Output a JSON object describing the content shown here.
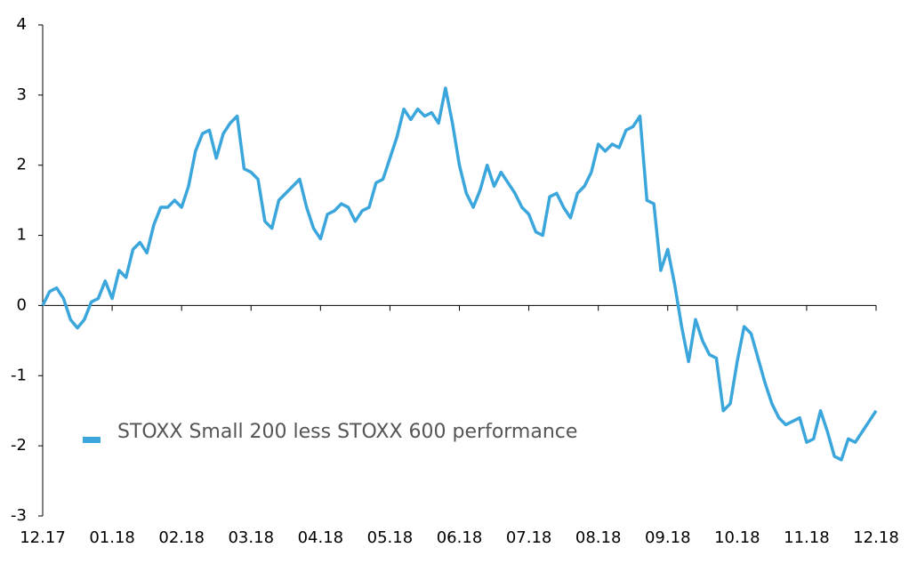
{
  "chart_data": {
    "type": "line",
    "categories": [
      "12.17",
      null,
      null,
      null,
      null,
      null,
      null,
      null,
      null,
      null,
      "01.18",
      null,
      null,
      null,
      null,
      null,
      null,
      null,
      null,
      null,
      "02.18",
      null,
      null,
      null,
      null,
      null,
      null,
      null,
      null,
      null,
      "03.18",
      null,
      null,
      null,
      null,
      null,
      null,
      null,
      null,
      null,
      "04.18",
      null,
      null,
      null,
      null,
      null,
      null,
      null,
      null,
      null,
      "05.18",
      null,
      null,
      null,
      null,
      null,
      null,
      null,
      null,
      null,
      "06.18",
      null,
      null,
      null,
      null,
      null,
      null,
      null,
      null,
      null,
      "07.18",
      null,
      null,
      null,
      null,
      null,
      null,
      null,
      null,
      null,
      "08.18",
      null,
      null,
      null,
      null,
      null,
      null,
      null,
      null,
      null,
      "09.18",
      null,
      null,
      null,
      null,
      null,
      null,
      null,
      null,
      null,
      "10.18",
      null,
      null,
      null,
      null,
      null,
      null,
      null,
      null,
      null,
      "11.18",
      null,
      null,
      null,
      null,
      null,
      null,
      null,
      null,
      null,
      "12.18"
    ],
    "series": [
      {
        "name": "STOXX Small 200 less STOXX 600 performance",
        "color": "#3aa6dc",
        "values": [
          0,
          0.2,
          0.25,
          0.1,
          -0.2,
          -0.32,
          -0.2,
          0.05,
          0.1,
          0.35,
          0.1,
          0.5,
          0.4,
          0.8,
          0.9,
          0.75,
          1.15,
          1.4,
          1.4,
          1.5,
          1.4,
          1.7,
          2.2,
          2.45,
          2.5,
          2.1,
          2.45,
          2.6,
          2.7,
          1.95,
          1.9,
          1.8,
          1.2,
          1.1,
          1.5,
          1.6,
          1.7,
          1.8,
          1.4,
          1.1,
          0.95,
          1.3,
          1.35,
          1.45,
          1.4,
          1.2,
          1.35,
          1.4,
          1.75,
          1.8,
          2.1,
          2.4,
          2.8,
          2.65,
          2.8,
          2.7,
          2.75,
          2.6,
          3.1,
          2.6,
          2.0,
          1.6,
          1.4,
          1.65,
          2.0,
          1.7,
          1.9,
          1.75,
          1.6,
          1.4,
          1.3,
          1.05,
          1.0,
          1.55,
          1.6,
          1.4,
          1.25,
          1.6,
          1.7,
          1.9,
          2.3,
          2.2,
          2.3,
          2.25,
          2.5,
          2.55,
          2.7,
          1.5,
          1.45,
          0.5,
          0.8,
          0.3,
          -0.3,
          -0.8,
          -0.2,
          -0.5,
          -0.7,
          -0.75,
          -1.5,
          -1.4,
          -0.8,
          -0.3,
          -0.4,
          -0.75,
          -1.1,
          -1.4,
          -1.6,
          -1.7,
          -1.65,
          -1.6,
          -1.95,
          -1.9,
          -1.5,
          -1.8,
          -2.15,
          -2.2,
          -1.9,
          -1.95,
          -1.8,
          -1.65,
          -1.5
        ]
      }
    ],
    "ylim": [
      -3,
      4
    ],
    "yticks": [
      -3,
      -2,
      -1,
      0,
      1,
      2,
      3,
      4
    ]
  }
}
